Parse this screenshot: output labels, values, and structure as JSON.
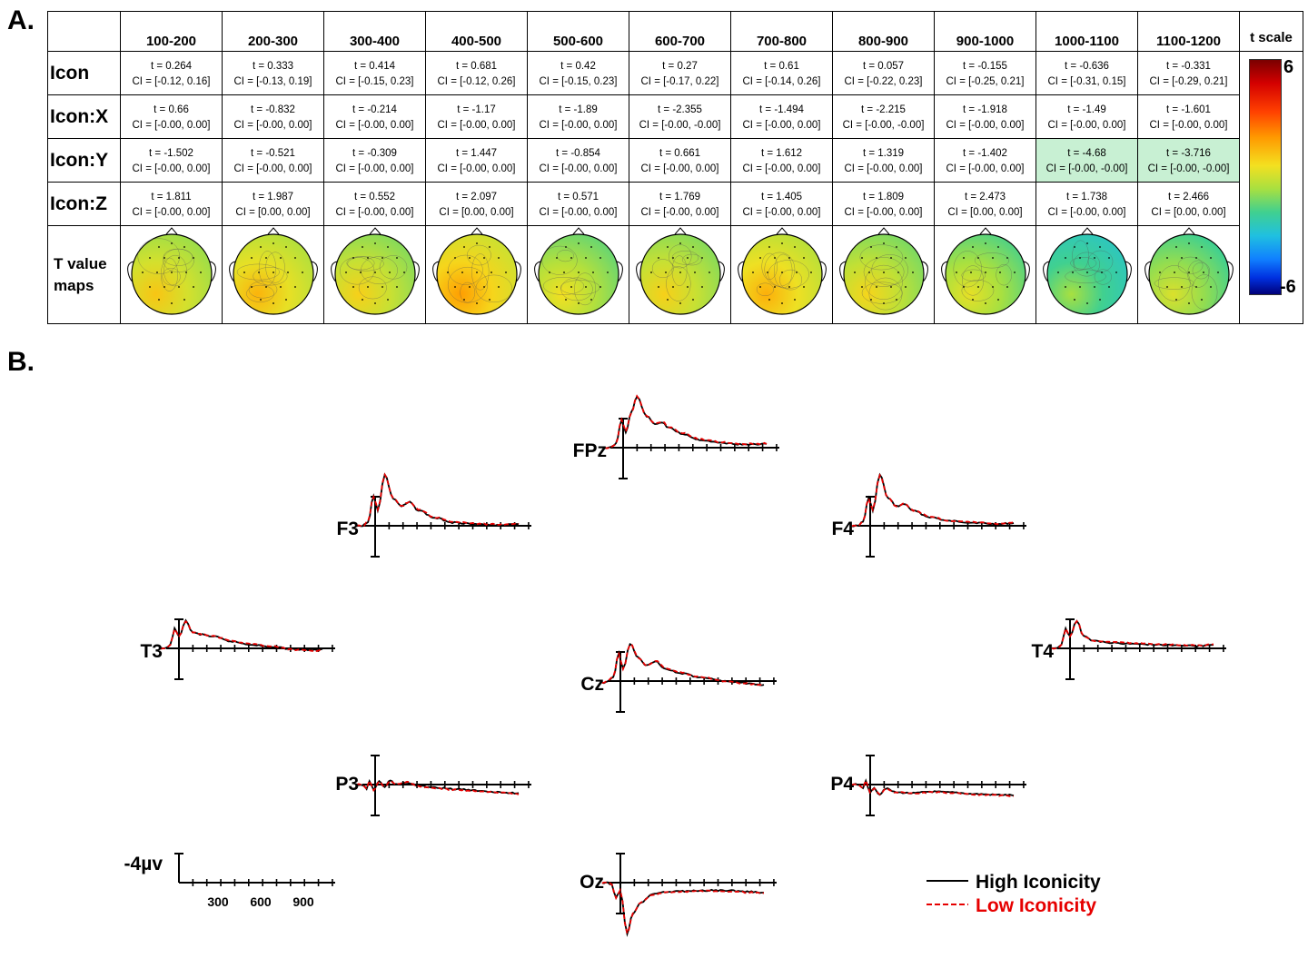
{
  "panel_a_label": "A.",
  "panel_b_label": "B.",
  "table": {
    "columns": [
      "100-200",
      "200-300",
      "300-400",
      "400-500",
      "500-600",
      "600-700",
      "700-800",
      "800-900",
      "900-1000",
      "1000-1100",
      "1100-1200"
    ],
    "rows": [
      {
        "label": "Icon",
        "t": [
          "t = 0.264",
          "t = 0.333",
          "t = 0.414",
          "t = 0.681",
          "t = 0.42",
          "t = 0.27",
          "t = 0.61",
          "t = 0.057",
          "t = -0.155",
          "t = -0.636",
          "t = -0.331"
        ],
        "ci": [
          "CI = [-0.12, 0.16]",
          "CI = [-0.13, 0.19]",
          "CI = [-0.15, 0.23]",
          "CI = [-0.12, 0.26]",
          "CI = [-0.15, 0.23]",
          "CI = [-0.17, 0.22]",
          "CI = [-0.14, 0.26]",
          "CI = [-0.22, 0.23]",
          "CI = [-0.25, 0.21]",
          "CI = [-0.31, 0.15]",
          "CI = [-0.29, 0.21]"
        ]
      },
      {
        "label": "Icon:X",
        "t": [
          "t = 0.66",
          "t = -0.832",
          "t = -0.214",
          "t = -1.17",
          "t = -1.89",
          "t = -2.355",
          "t = -1.494",
          "t = -2.215",
          "t = -1.918",
          "t = -1.49",
          "t = -1.601"
        ],
        "ci": [
          "CI = [-0.00, 0.00]",
          "CI = [-0.00, 0.00]",
          "CI = [-0.00, 0.00]",
          "CI = [-0.00, 0.00]",
          "CI = [-0.00, 0.00]",
          "CI = [-0.00, -0.00]",
          "CI = [-0.00, 0.00]",
          "CI = [-0.00, -0.00]",
          "CI = [-0.00, 0.00]",
          "CI = [-0.00, 0.00]",
          "CI = [-0.00, 0.00]"
        ]
      },
      {
        "label": "Icon:Y",
        "t": [
          "t = -1.502",
          "t = -0.521",
          "t = -0.309",
          "t = 1.447",
          "t = -0.854",
          "t = 0.661",
          "t = 1.612",
          "t = 1.319",
          "t = -1.402",
          "t = -4.68",
          "t = -3.716"
        ],
        "ci": [
          "CI = [-0.00, 0.00]",
          "CI = [-0.00, 0.00]",
          "CI = [-0.00, 0.00]",
          "CI = [-0.00, 0.00]",
          "CI = [-0.00, 0.00]",
          "CI = [-0.00, 0.00]",
          "CI = [-0.00, 0.00]",
          "CI = [-0.00, 0.00]",
          "CI = [-0.00, 0.00]",
          "CI = [-0.00, -0.00]",
          "CI = [-0.00, -0.00]"
        ],
        "highlight": [
          false,
          false,
          false,
          false,
          false,
          false,
          false,
          false,
          false,
          true,
          true
        ]
      },
      {
        "label": "Icon:Z",
        "t": [
          "t = 1.811",
          "t = 1.987",
          "t = 0.552",
          "t = 2.097",
          "t = 0.571",
          "t = 1.769",
          "t = 1.405",
          "t = 1.809",
          "t = 2.473",
          "t = 1.738",
          "t = 2.466"
        ],
        "ci": [
          "CI = [-0.00, 0.00]",
          "CI = [0.00, 0.00]",
          "CI = [-0.00, 0.00]",
          "CI = [0.00, 0.00]",
          "CI = [-0.00, 0.00]",
          "CI = [-0.00, 0.00]",
          "CI = [-0.00, 0.00]",
          "CI = [-0.00, 0.00]",
          "CI = [0.00, 0.00]",
          "CI = [-0.00, 0.00]",
          "CI = [0.00, 0.00]"
        ]
      }
    ],
    "maps_label_line1": "T value",
    "maps_label_line2": "maps",
    "maps_mean_t": [
      0.5,
      0.8,
      0.3,
      1.2,
      0.0,
      0.3,
      0.9,
      0.2,
      -0.2,
      -1.2,
      -0.4
    ],
    "scale_title": "t scale",
    "scale_max": "6",
    "scale_min": "-6"
  },
  "colors": {
    "high": "#000000",
    "low": "#e60000",
    "highlight": "#c8f0d3"
  },
  "erp": {
    "electrodes": [
      "FPz",
      "F3",
      "F4",
      "T3",
      "Cz",
      "T4",
      "P3",
      "P4",
      "Oz"
    ],
    "scale_label": "-4µv",
    "scale_ticks": [
      "300",
      "600",
      "900"
    ],
    "legend": [
      {
        "label": "High Iconicity",
        "style": "solid"
      },
      {
        "label": "Low Iconicity",
        "style": "dashed"
      }
    ]
  },
  "chart_data": {
    "type": "line",
    "title": "",
    "xlabel": "",
    "ylabel": "",
    "x_ms": [
      0,
      100,
      200,
      300,
      400,
      500,
      600,
      700,
      800,
      900,
      1000,
      1100
    ],
    "y_scale_uv": -4,
    "series": [
      {
        "name": "High Iconicity",
        "electrode": "FPz",
        "values": [
          0,
          -3.5,
          -6.5,
          -4.5,
          -3.6,
          -3.0,
          -2.2,
          -1.5,
          -1.0,
          -0.8,
          -0.7,
          -0.9
        ]
      },
      {
        "name": "Low Iconicity",
        "electrode": "FPz",
        "values": [
          0,
          -3.4,
          -6.4,
          -4.4,
          -3.5,
          -2.8,
          -2.0,
          -1.3,
          -0.8,
          -0.5,
          -0.4,
          -0.5
        ]
      },
      {
        "name": "High Iconicity",
        "electrode": "Cz",
        "values": [
          0,
          -3.4,
          -4.8,
          -3.2,
          -2.6,
          -2.0,
          -1.2,
          -0.8,
          -0.4,
          -0.2,
          0,
          0.1
        ]
      },
      {
        "name": "Low Iconicity",
        "electrode": "Cz",
        "values": [
          0,
          -3.3,
          -4.7,
          -2.9,
          -2.4,
          -1.8,
          -1.0,
          -0.6,
          -0.2,
          0,
          0.1,
          0.2
        ]
      },
      {
        "name": "High Iconicity",
        "electrode": "Oz",
        "values": [
          0,
          2.0,
          9.0,
          4.5,
          2.5,
          2.0,
          1.7,
          1.5,
          1.3,
          1.3,
          1.5,
          1.6
        ]
      },
      {
        "name": "Low Iconicity",
        "electrode": "Oz",
        "values": [
          0,
          2.1,
          9.2,
          4.6,
          2.7,
          2.2,
          1.8,
          1.6,
          1.5,
          1.6,
          1.6,
          1.7
        ]
      }
    ]
  }
}
